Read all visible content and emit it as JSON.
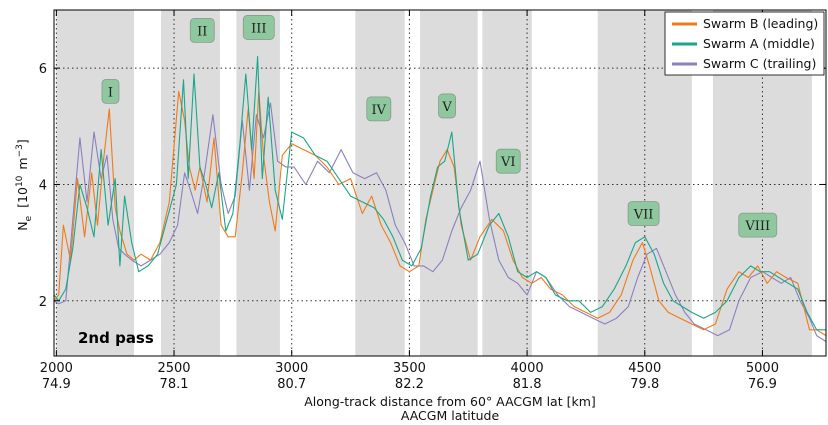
{
  "chart_data": {
    "type": "line",
    "title": "",
    "pass_label": "2nd pass",
    "ylabel": "N$_e$ [10$^{10}$ m$^{-3}$]",
    "ylabel_main": "N",
    "ylabel_sub": "e",
    "ylabel_unit_a": "[10",
    "ylabel_unit_exp1": "10",
    "ylabel_unit_b": "m",
    "ylabel_unit_exp2": "−3",
    "ylabel_unit_c": "]",
    "xlabel": "Along-track distance from 60° AACGM lat [km]",
    "xlabel2": "AACGM latitude",
    "xlim": [
      1990,
      5270
    ],
    "ylim": [
      1.05,
      7.0
    ],
    "yticks": [
      2,
      4,
      6
    ],
    "xticks": [
      2000,
      2500,
      3000,
      3500,
      4000,
      4500,
      5000
    ],
    "xtick_labels": [
      "2000",
      "2500",
      "3000",
      "3500",
      "4000",
      "4500",
      "5000"
    ],
    "lat_labels": [
      "74.9",
      "78.1",
      "80.7",
      "82.2",
      "81.8",
      "79.8",
      "76.9"
    ],
    "grid": true,
    "legend_position": "top-right",
    "shaded_regions": [
      [
        2000,
        2330
      ],
      [
        2445,
        2695
      ],
      [
        2765,
        2950
      ],
      [
        3270,
        3480
      ],
      [
        3545,
        3790
      ],
      [
        3810,
        4020
      ],
      [
        4300,
        4700
      ],
      [
        4790,
        5210
      ]
    ],
    "region_labels": [
      {
        "label": "I",
        "x": 2230,
        "y": 5.6
      },
      {
        "label": "II",
        "x": 2620,
        "y": 6.65
      },
      {
        "label": "III",
        "x": 2860,
        "y": 6.7
      },
      {
        "label": "IV",
        "x": 3370,
        "y": 5.3
      },
      {
        "label": "V",
        "x": 3660,
        "y": 5.35
      },
      {
        "label": "VI",
        "x": 3920,
        "y": 4.4
      },
      {
        "label": "VII",
        "x": 4495,
        "y": 3.5
      },
      {
        "label": "VIII",
        "x": 4980,
        "y": 3.3
      }
    ],
    "series": [
      {
        "name": "Swarm B (leading)",
        "color": "#f07a1a",
        "x": [
          1990,
          2010,
          2030,
          2060,
          2090,
          2120,
          2150,
          2175,
          2200,
          2225,
          2250,
          2270,
          2300,
          2330,
          2360,
          2400,
          2440,
          2480,
          2520,
          2545,
          2565,
          2590,
          2610,
          2640,
          2670,
          2700,
          2730,
          2760,
          2790,
          2815,
          2840,
          2860,
          2880,
          2905,
          2930,
          2960,
          3000,
          3050,
          3100,
          3150,
          3200,
          3250,
          3300,
          3340,
          3380,
          3420,
          3460,
          3500,
          3540,
          3570,
          3600,
          3630,
          3660,
          3690,
          3720,
          3760,
          3800,
          3850,
          3900,
          3940,
          3980,
          4020,
          4060,
          4100,
          4150,
          4200,
          4250,
          4300,
          4350,
          4400,
          4450,
          4490,
          4520,
          4560,
          4600,
          4650,
          4700,
          4750,
          4800,
          4850,
          4900,
          4940,
          4980,
          5020,
          5060,
          5100,
          5150,
          5200,
          5230,
          5270
        ],
        "values": [
          2.0,
          2.1,
          3.3,
          2.7,
          4.1,
          3.1,
          4.2,
          3.3,
          4.4,
          5.3,
          3.6,
          3.2,
          2.8,
          2.7,
          2.8,
          2.7,
          3.0,
          3.7,
          5.6,
          5.1,
          4.3,
          3.9,
          4.3,
          3.7,
          4.8,
          3.3,
          3.1,
          3.1,
          4.2,
          5.3,
          4.1,
          5.6,
          4.5,
          3.7,
          3.2,
          4.5,
          4.7,
          4.6,
          4.5,
          4.3,
          4.0,
          4.1,
          3.5,
          3.8,
          3.3,
          3.0,
          2.6,
          2.5,
          2.6,
          3.4,
          3.9,
          4.4,
          4.6,
          4.3,
          3.3,
          2.7,
          3.1,
          3.4,
          3.2,
          2.7,
          2.4,
          2.3,
          2.4,
          2.2,
          2.1,
          1.9,
          1.8,
          1.7,
          1.8,
          2.1,
          2.7,
          3.0,
          2.6,
          2.0,
          1.8,
          1.7,
          1.6,
          1.5,
          1.6,
          2.2,
          2.5,
          2.4,
          2.6,
          2.3,
          2.5,
          2.4,
          2.3,
          1.5,
          1.5,
          1.4
        ]
      },
      {
        "name": "Swarm A (middle)",
        "color": "#1aa68a",
        "x": [
          1990,
          2010,
          2040,
          2070,
          2100,
          2130,
          2160,
          2190,
          2220,
          2250,
          2270,
          2290,
          2320,
          2350,
          2390,
          2430,
          2470,
          2510,
          2540,
          2560,
          2585,
          2610,
          2635,
          2660,
          2690,
          2720,
          2750,
          2780,
          2805,
          2830,
          2855,
          2875,
          2900,
          2930,
          2960,
          3000,
          3050,
          3100,
          3150,
          3200,
          3250,
          3300,
          3350,
          3390,
          3430,
          3470,
          3510,
          3550,
          3590,
          3620,
          3650,
          3680,
          3710,
          3750,
          3790,
          3840,
          3880,
          3920,
          3960,
          4000,
          4040,
          4080,
          4120,
          4170,
          4220,
          4270,
          4320,
          4370,
          4420,
          4460,
          4500,
          4540,
          4580,
          4620,
          4660,
          4700,
          4750,
          4800,
          4850,
          4900,
          4950,
          4990,
          5030,
          5070,
          5110,
          5150,
          5190,
          5230,
          5270
        ],
        "values": [
          2.1,
          2.0,
          2.2,
          2.9,
          4.0,
          3.6,
          3.1,
          4.6,
          3.3,
          4.1,
          2.6,
          3.8,
          3.0,
          2.5,
          2.6,
          2.8,
          3.4,
          4.0,
          5.8,
          4.1,
          5.9,
          4.3,
          4.0,
          3.6,
          4.2,
          3.2,
          3.5,
          4.7,
          5.9,
          4.6,
          6.2,
          4.1,
          5.5,
          3.9,
          3.4,
          4.9,
          4.8,
          4.5,
          4.4,
          4.1,
          3.8,
          3.7,
          3.6,
          3.4,
          3.1,
          2.7,
          2.6,
          2.9,
          3.8,
          4.3,
          4.4,
          4.9,
          3.6,
          2.7,
          2.8,
          3.3,
          3.5,
          3.1,
          2.5,
          2.4,
          2.5,
          2.4,
          2.1,
          2.0,
          2.0,
          1.8,
          1.9,
          2.2,
          2.6,
          3.0,
          3.1,
          2.8,
          2.3,
          2.0,
          1.9,
          1.8,
          1.7,
          1.8,
          2.0,
          2.4,
          2.6,
          2.5,
          2.5,
          2.4,
          2.3,
          2.2,
          1.8,
          1.5,
          1.5
        ]
      },
      {
        "name": "Swarm C (trailing)",
        "color": "#8a80c0",
        "x": [
          1990,
          2010,
          2040,
          2070,
          2100,
          2130,
          2160,
          2190,
          2215,
          2240,
          2265,
          2290,
          2320,
          2360,
          2400,
          2440,
          2480,
          2515,
          2545,
          2570,
          2600,
          2630,
          2665,
          2700,
          2730,
          2760,
          2790,
          2820,
          2850,
          2880,
          2910,
          2940,
          2975,
          3010,
          3060,
          3110,
          3160,
          3210,
          3260,
          3310,
          3360,
          3400,
          3440,
          3480,
          3520,
          3560,
          3600,
          3640,
          3680,
          3720,
          3760,
          3800,
          3840,
          3880,
          3920,
          3960,
          4000,
          4040,
          4080,
          4130,
          4180,
          4230,
          4280,
          4330,
          4380,
          4430,
          4470,
          4510,
          4550,
          4590,
          4630,
          4670,
          4710,
          4760,
          4810,
          4860,
          4900,
          4950,
          5000,
          5040,
          5080,
          5120,
          5160,
          5200,
          5230,
          5270
        ],
        "values": [
          2.0,
          1.95,
          2.0,
          3.4,
          4.8,
          3.7,
          4.9,
          4.1,
          4.5,
          3.4,
          2.9,
          2.8,
          2.7,
          2.6,
          2.7,
          2.8,
          3.0,
          3.3,
          4.2,
          3.9,
          3.5,
          4.2,
          5.2,
          4.0,
          3.5,
          3.8,
          5.1,
          3.9,
          5.2,
          4.8,
          5.4,
          4.4,
          4.3,
          4.3,
          4.0,
          4.4,
          4.2,
          4.6,
          4.2,
          4.1,
          4.2,
          3.9,
          3.3,
          3.0,
          2.6,
          2.6,
          2.5,
          2.7,
          3.2,
          3.6,
          3.9,
          4.4,
          3.4,
          2.7,
          2.4,
          2.3,
          2.1,
          2.5,
          2.4,
          2.1,
          1.9,
          1.8,
          1.7,
          1.6,
          1.7,
          1.9,
          2.4,
          2.8,
          2.9,
          2.5,
          2.1,
          1.8,
          1.6,
          1.5,
          1.4,
          1.5,
          2.0,
          2.4,
          2.5,
          2.4,
          2.3,
          2.4,
          2.0,
          1.7,
          1.4,
          1.3
        ]
      }
    ]
  }
}
